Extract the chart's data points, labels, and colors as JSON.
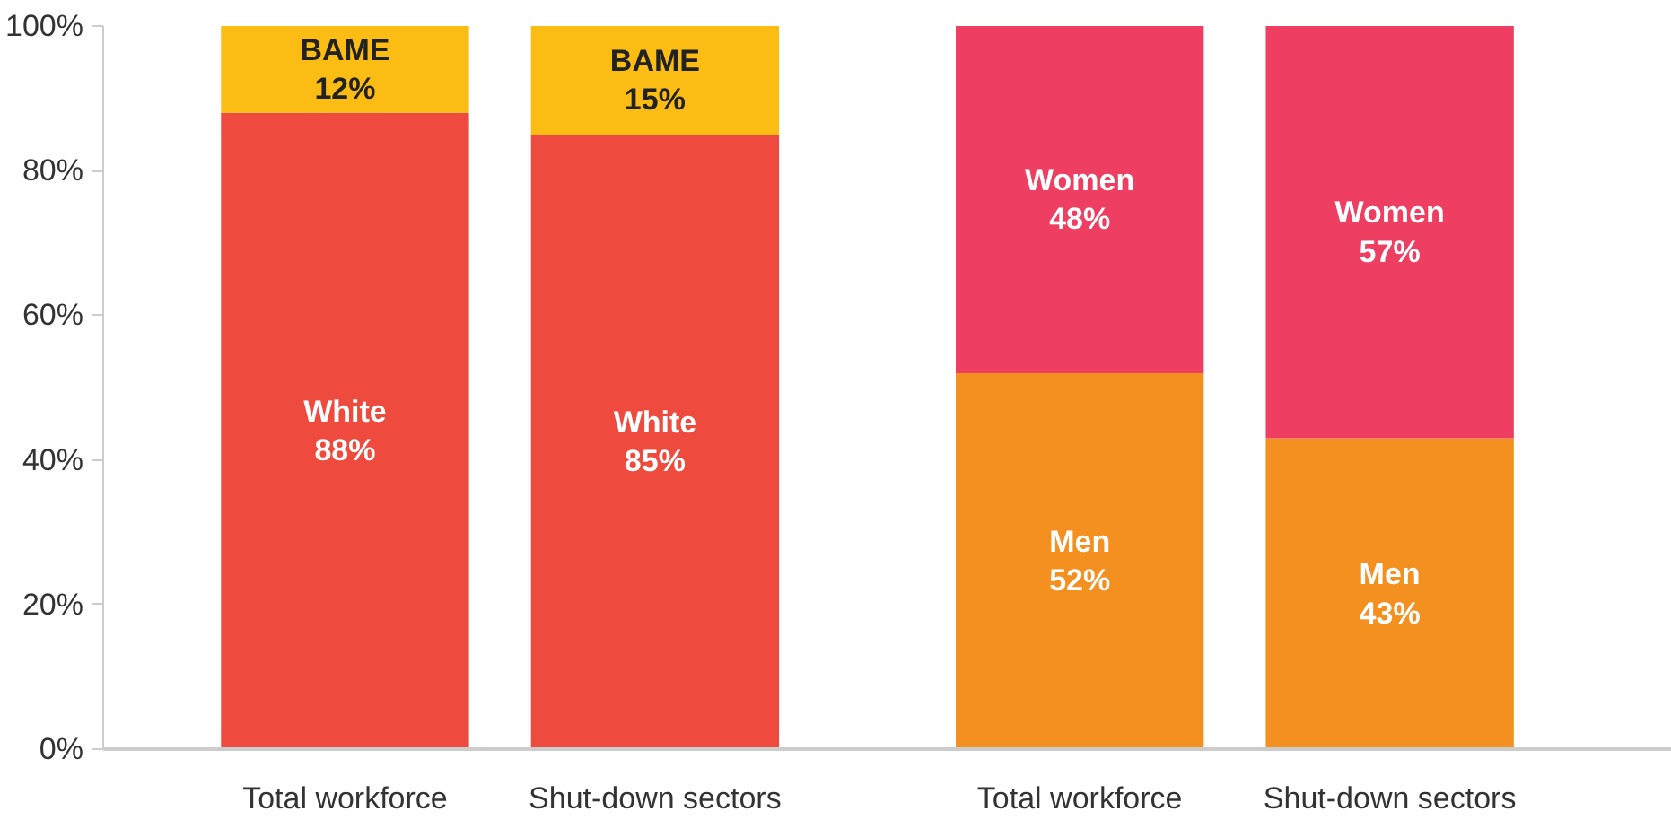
{
  "chart_data": {
    "type": "bar",
    "stacked": true,
    "categories": [
      "Total workforce",
      "Shut-down sectors",
      null,
      "Total workforce",
      "Shut-down sectors"
    ],
    "series": [
      {
        "name": "White",
        "color": "#ee4b3e",
        "values": [
          88,
          85,
          null,
          null,
          null
        ],
        "value_labels": [
          "88%",
          "85%",
          null,
          null,
          null
        ]
      },
      {
        "name": "BAME",
        "color": "#fbbd13",
        "values": [
          12,
          15,
          null,
          null,
          null
        ],
        "value_labels": [
          "12%",
          "15%",
          null,
          null,
          null
        ]
      },
      {
        "name": "Men",
        "color": "#f3901f",
        "values": [
          null,
          null,
          null,
          52,
          43
        ],
        "value_labels": [
          null,
          null,
          null,
          "52%",
          "43%"
        ]
      },
      {
        "name": "Women",
        "color": "#ee3e62",
        "values": [
          null,
          null,
          null,
          48,
          57
        ],
        "value_labels": [
          null,
          null,
          null,
          "48%",
          "57%"
        ]
      }
    ],
    "ylim": [
      0,
      100
    ],
    "yticks": [
      {
        "value": 0,
        "label": "0%"
      },
      {
        "value": 20,
        "label": "20%"
      },
      {
        "value": 40,
        "label": "40%"
      },
      {
        "value": 60,
        "label": "60%"
      },
      {
        "value": 80,
        "label": "80%"
      },
      {
        "value": 100,
        "label": "100%"
      }
    ],
    "grid": false
  }
}
